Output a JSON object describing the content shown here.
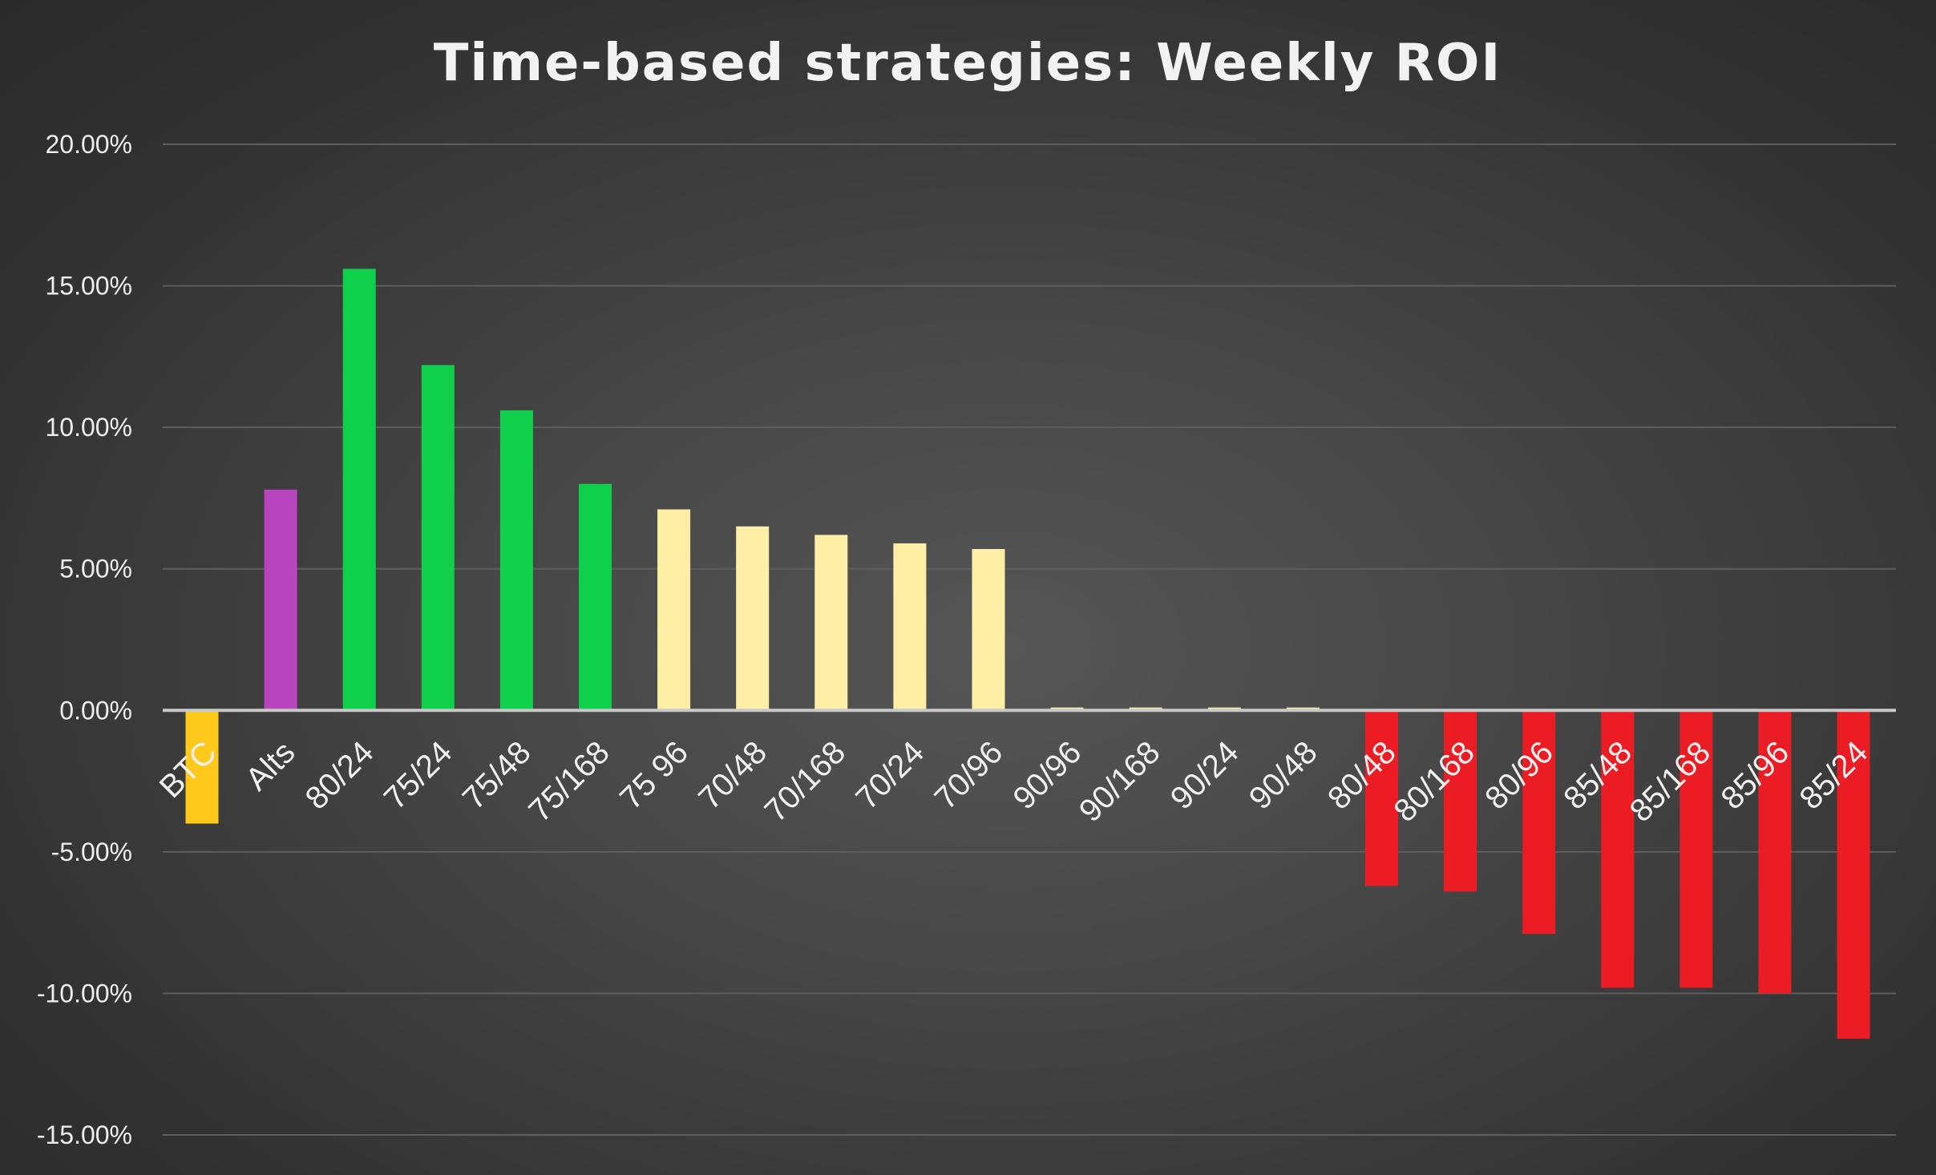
{
  "chart_data": {
    "type": "bar",
    "title": "Time-based strategies: Weekly ROI",
    "xlabel": "",
    "ylabel": "",
    "ylim": [
      -0.15,
      0.2
    ],
    "yticks": [
      0.2,
      0.15,
      0.1,
      0.05,
      0.0,
      -0.05,
      -0.1,
      -0.15
    ],
    "ytick_labels": [
      "20.00%",
      "15.00%",
      "10.00%",
      "5.00%",
      "0.00%",
      "-5.00%",
      "-10.00%",
      "-15.00%"
    ],
    "grid": true,
    "legend": "none",
    "categories": [
      "BTC",
      "Alts",
      "80/24",
      "75/24",
      "75/48",
      "75/168",
      "75 96",
      "70/48",
      "70/168",
      "70/24",
      "70/96",
      "90/96",
      "90/168",
      "90/24",
      "90/48",
      "80/48",
      "80/168",
      "80/96",
      "85/48",
      "85/168",
      "85/96",
      "85/24"
    ],
    "values": [
      -0.04,
      0.078,
      0.156,
      0.122,
      0.106,
      0.08,
      0.071,
      0.065,
      0.062,
      0.059,
      0.057,
      0.001,
      0.001,
      0.001,
      0.001,
      -0.062,
      -0.064,
      -0.079,
      -0.098,
      -0.098,
      -0.1,
      -0.116
    ],
    "colors": [
      "#ffc91c",
      "#b944bf",
      "#0fd04a",
      "#0fd04a",
      "#0fd04a",
      "#0fd04a",
      "#ffeea6",
      "#ffeea6",
      "#ffeea6",
      "#ffeea6",
      "#ffeea6",
      "#ffeea6",
      "#ffeea6",
      "#ffeea6",
      "#ffeea6",
      "#ec1c24",
      "#ec1c24",
      "#ec1c24",
      "#ec1c24",
      "#ec1c24",
      "#ec1c24",
      "#ec1c24"
    ]
  }
}
